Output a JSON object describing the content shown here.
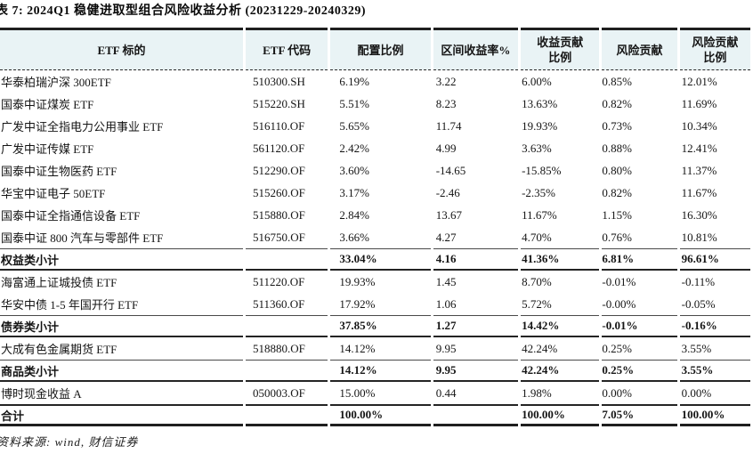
{
  "title": "表 7: 2024Q1 稳健进取型组合风险收益分析 (20231229-20240329)",
  "source_note": "资料来源: wind, 财信证券",
  "colors": {
    "header_bg": "#e9f3f5",
    "text": "#151515",
    "rule_line": "#1f1f1f"
  },
  "columns": [
    {
      "key": "name",
      "label": "ETF 标的"
    },
    {
      "key": "code",
      "label": "ETF 代码"
    },
    {
      "key": "alloc",
      "label": "配置比例"
    },
    {
      "key": "ret",
      "label": "区间收益率%"
    },
    {
      "key": "retc",
      "label": "收益贡献",
      "label2": "比例"
    },
    {
      "key": "risk",
      "label": "风险贡献"
    },
    {
      "key": "riskc",
      "label": "风险贡献",
      "label2": "比例"
    }
  ],
  "rows": [
    {
      "type": "data",
      "name": "华泰柏瑞沪深 300ETF",
      "code": "510300.SH",
      "alloc": "6.19%",
      "ret": "3.22",
      "retc": "6.00%",
      "risk": "0.85%",
      "riskc": "12.01%"
    },
    {
      "type": "data",
      "name": "国泰中证煤炭 ETF",
      "code": "515220.SH",
      "alloc": "5.51%",
      "ret": "8.23",
      "retc": "13.63%",
      "risk": "0.82%",
      "riskc": "11.69%"
    },
    {
      "type": "data",
      "name": "广发中证全指电力公用事业 ETF",
      "code": "516110.OF",
      "alloc": "5.65%",
      "ret": "11.74",
      "retc": "19.93%",
      "risk": "0.73%",
      "riskc": "10.34%"
    },
    {
      "type": "data",
      "name": "广发中证传媒 ETF",
      "code": "561120.OF",
      "alloc": "2.42%",
      "ret": "4.99",
      "retc": "3.63%",
      "risk": "0.88%",
      "riskc": "12.41%"
    },
    {
      "type": "data",
      "name": "国泰中证生物医药 ETF",
      "code": "512290.OF",
      "alloc": "3.60%",
      "ret": "-14.65",
      "retc": "-15.85%",
      "risk": "0.80%",
      "riskc": "11.37%"
    },
    {
      "type": "data",
      "name": "华宝中证电子 50ETF",
      "code": "515260.OF",
      "alloc": "3.17%",
      "ret": "-2.46",
      "retc": "-2.35%",
      "risk": "0.82%",
      "riskc": "11.67%"
    },
    {
      "type": "data",
      "name": "国泰中证全指通信设备 ETF",
      "code": "515880.OF",
      "alloc": "2.84%",
      "ret": "13.67",
      "retc": "11.67%",
      "risk": "1.15%",
      "riskc": "16.30%"
    },
    {
      "type": "data",
      "name": "国泰中证 800 汽车与零部件 ETF",
      "code": "516750.OF",
      "alloc": "3.66%",
      "ret": "4.27",
      "retc": "4.70%",
      "risk": "0.76%",
      "riskc": "10.81%"
    },
    {
      "type": "sub",
      "name": "权益类小计",
      "code": "",
      "alloc": "33.04%",
      "ret": "4.16",
      "retc": "41.36%",
      "risk": "6.81%",
      "riskc": "96.61%"
    },
    {
      "type": "data",
      "name": "海富通上证城投债 ETF",
      "code": "511220.OF",
      "alloc": "19.93%",
      "ret": "1.45",
      "retc": "8.70%",
      "risk": "-0.01%",
      "riskc": "-0.11%"
    },
    {
      "type": "data",
      "name": "华安中债 1-5 年国开行 ETF",
      "code": "511360.OF",
      "alloc": "17.92%",
      "ret": "1.06",
      "retc": "5.72%",
      "risk": "-0.00%",
      "riskc": "-0.05%"
    },
    {
      "type": "sub",
      "name": "债券类小计",
      "code": "",
      "alloc": "37.85%",
      "ret": "1.27",
      "retc": "14.42%",
      "risk": "-0.01%",
      "riskc": "-0.16%"
    },
    {
      "type": "data",
      "name": "大成有色金属期货 ETF",
      "code": "518880.OF",
      "alloc": "14.12%",
      "ret": "9.95",
      "retc": "42.24%",
      "risk": "0.25%",
      "riskc": "3.55%"
    },
    {
      "type": "sub",
      "name": "商品类小计",
      "code": "",
      "alloc": "14.12%",
      "ret": "9.95",
      "retc": "42.24%",
      "risk": "0.25%",
      "riskc": "3.55%"
    },
    {
      "type": "data",
      "name": "博时现金收益 A",
      "code": "050003.OF",
      "alloc": "15.00%",
      "ret": "0.44",
      "retc": "1.98%",
      "risk": "0.00%",
      "riskc": "0.00%"
    },
    {
      "type": "total",
      "name": "合计",
      "code": "",
      "alloc": "100.00%",
      "ret": "",
      "retc": "100.00%",
      "risk": "7.05%",
      "riskc": "100.00%"
    }
  ]
}
